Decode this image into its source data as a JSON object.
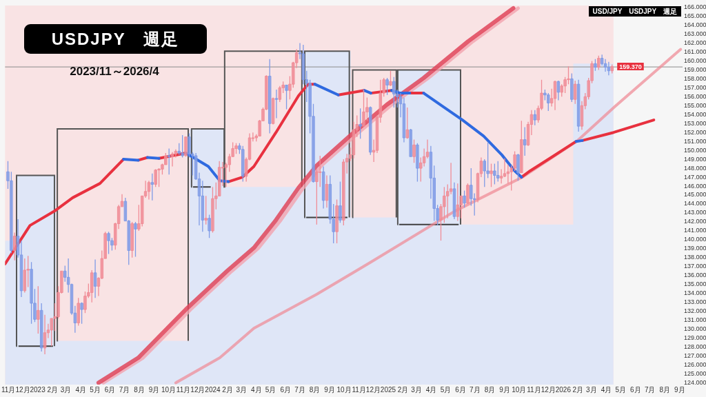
{
  "chart_data": {
    "type": "candlestick",
    "title": "USDJPY　週足",
    "subtitle": "2023/11～2026/4",
    "annotations": [
      "USD/JPY　USDJPY　週足"
    ],
    "x": [
      "2022-10-31",
      "2022-11-07",
      "2022-11-14",
      "2022-11-21",
      "2022-11-28",
      "2022-12-05",
      "2022-12-12",
      "2022-12-19",
      "2022-12-26",
      "2023-01-02",
      "2023-01-09",
      "2023-01-16",
      "2023-01-23",
      "2023-01-30",
      "2023-02-06",
      "2023-02-13",
      "2023-02-20",
      "2023-02-27",
      "2023-03-06",
      "2023-03-13",
      "2023-03-20",
      "2023-03-27",
      "2023-04-03",
      "2023-04-10",
      "2023-04-17",
      "2023-04-24",
      "2023-05-01",
      "2023-05-08",
      "2023-05-15",
      "2023-05-22",
      "2023-05-29",
      "2023-06-05",
      "2023-06-12",
      "2023-06-19",
      "2023-06-26",
      "2023-07-03",
      "2023-07-10",
      "2023-07-17",
      "2023-07-24",
      "2023-07-31",
      "2023-08-07",
      "2023-08-14",
      "2023-08-21",
      "2023-08-28",
      "2023-09-04",
      "2023-09-11",
      "2023-09-18",
      "2023-09-25",
      "2023-10-02",
      "2023-10-09",
      "2023-10-16",
      "2023-10-23",
      "2023-10-30",
      "2023-11-06",
      "2023-11-13",
      "2023-11-20",
      "2023-11-27",
      "2023-12-04",
      "2023-12-11",
      "2023-12-18",
      "2023-12-25",
      "2024-01-01",
      "2024-01-08",
      "2024-01-15",
      "2024-01-22",
      "2024-01-29",
      "2024-02-05",
      "2024-02-12",
      "2024-02-19",
      "2024-02-26",
      "2024-03-04",
      "2024-03-11",
      "2024-03-18",
      "2024-03-25",
      "2024-04-01",
      "2024-04-08",
      "2024-04-15",
      "2024-04-22",
      "2024-04-29",
      "2024-05-06",
      "2024-05-13",
      "2024-05-20",
      "2024-05-27",
      "2024-06-03",
      "2024-06-10",
      "2024-06-17",
      "2024-06-24",
      "2024-07-01",
      "2024-07-08",
      "2024-07-15",
      "2024-07-22",
      "2024-07-29",
      "2024-08-05",
      "2024-08-12",
      "2024-08-19",
      "2024-08-26",
      "2024-09-02",
      "2024-09-09",
      "2024-09-16",
      "2024-09-23",
      "2024-09-30",
      "2024-10-07",
      "2024-10-14",
      "2024-10-21",
      "2024-10-28",
      "2024-11-04",
      "2024-11-11",
      "2024-11-18",
      "2024-11-25",
      "2024-12-02",
      "2024-12-09",
      "2024-12-16",
      "2024-12-23",
      "2024-12-30",
      "2025-01-06",
      "2025-01-13",
      "2025-01-20",
      "2025-01-27",
      "2025-02-03",
      "2025-02-10",
      "2025-02-17",
      "2025-02-24",
      "2025-03-03",
      "2025-03-10",
      "2025-03-17",
      "2025-03-24",
      "2025-03-31",
      "2025-04-07",
      "2025-04-14",
      "2025-04-21",
      "2025-04-28",
      "2025-05-05",
      "2025-05-12",
      "2025-05-19",
      "2025-05-26",
      "2025-06-02",
      "2025-06-09",
      "2025-06-16",
      "2025-06-23",
      "2025-06-30",
      "2025-07-07",
      "2025-07-14",
      "2025-07-21",
      "2025-07-28",
      "2025-08-04",
      "2025-08-11",
      "2025-08-18",
      "2025-08-25",
      "2025-09-01",
      "2025-09-08",
      "2025-09-15",
      "2025-09-22",
      "2025-09-29",
      "2025-10-06",
      "2025-10-13",
      "2025-10-20",
      "2025-10-27",
      "2025-11-03",
      "2025-11-10",
      "2025-11-17",
      "2025-11-24",
      "2025-12-01",
      "2025-12-08",
      "2025-12-15",
      "2025-12-22",
      "2025-12-29",
      "2026-01-05",
      "2026-01-12",
      "2026-01-19",
      "2026-01-26",
      "2026-02-02",
      "2026-02-09",
      "2026-02-16",
      "2026-02-23",
      "2026-03-02",
      "2026-03-09",
      "2026-03-16",
      "2026-03-23",
      "2026-03-30",
      "2026-04-06",
      "2026-04-13"
    ],
    "ohlc": [
      [
        147.6,
        148.8,
        145.7,
        146.6
      ],
      [
        146.6,
        147.6,
        138.5,
        138.8
      ],
      [
        138.8,
        140.8,
        137.7,
        140.4
      ],
      [
        140.4,
        142.3,
        138.0,
        138.3
      ],
      [
        138.3,
        139.9,
        133.6,
        134.3
      ],
      [
        134.3,
        137.9,
        134.1,
        136.6
      ],
      [
        136.6,
        138.2,
        134.7,
        136.7
      ],
      [
        136.7,
        137.5,
        130.6,
        132.9
      ],
      [
        132.9,
        134.5,
        130.8,
        131.1
      ],
      [
        131.1,
        134.8,
        129.5,
        132.1
      ],
      [
        132.1,
        132.9,
        127.5,
        127.9
      ],
      [
        127.9,
        131.6,
        127.2,
        129.6
      ],
      [
        129.6,
        130.6,
        129.0,
        129.9
      ],
      [
        129.9,
        131.2,
        128.1,
        131.2
      ],
      [
        131.2,
        132.9,
        129.8,
        131.4
      ],
      [
        131.4,
        134.8,
        131.2,
        134.1
      ],
      [
        134.1,
        136.5,
        134.0,
        136.5
      ],
      [
        136.5,
        137.1,
        135.3,
        135.8
      ],
      [
        135.8,
        137.9,
        134.1,
        135.0
      ],
      [
        135.0,
        135.1,
        131.6,
        131.8
      ],
      [
        131.8,
        132.6,
        129.6,
        130.7
      ],
      [
        130.7,
        133.5,
        130.4,
        132.9
      ],
      [
        132.9,
        133.0,
        130.6,
        132.2
      ],
      [
        132.2,
        134.2,
        131.8,
        133.7
      ],
      [
        133.7,
        135.1,
        133.5,
        134.1
      ],
      [
        134.1,
        136.6,
        133.0,
        136.3
      ],
      [
        136.3,
        137.8,
        133.5,
        134.8
      ],
      [
        134.8,
        135.8,
        133.7,
        135.7
      ],
      [
        135.7,
        138.8,
        135.6,
        137.9
      ],
      [
        137.9,
        140.9,
        137.9,
        140.7
      ],
      [
        140.7,
        140.9,
        138.4,
        139.9
      ],
      [
        139.9,
        140.2,
        138.8,
        139.4
      ],
      [
        139.4,
        141.9,
        138.9,
        141.8
      ],
      [
        141.8,
        143.9,
        141.2,
        143.7
      ],
      [
        143.7,
        145.1,
        143.7,
        144.3
      ],
      [
        144.3,
        144.7,
        142.1,
        142.1
      ],
      [
        142.1,
        142.2,
        137.2,
        138.8
      ],
      [
        138.8,
        142.0,
        138.0,
        141.8
      ],
      [
        141.8,
        142.0,
        138.1,
        141.2
      ],
      [
        141.2,
        143.9,
        141.0,
        141.8
      ],
      [
        141.8,
        144.9,
        141.5,
        144.9
      ],
      [
        144.9,
        146.6,
        144.7,
        145.4
      ],
      [
        145.4,
        146.6,
        144.5,
        146.4
      ],
      [
        146.4,
        147.4,
        144.4,
        146.2
      ],
      [
        146.2,
        147.9,
        145.9,
        147.8
      ],
      [
        147.8,
        148.0,
        145.9,
        147.9
      ],
      [
        147.9,
        148.5,
        147.3,
        148.4
      ],
      [
        148.4,
        149.7,
        148.4,
        149.4
      ],
      [
        149.4,
        150.2,
        147.3,
        149.3
      ],
      [
        149.3,
        149.8,
        148.2,
        149.6
      ],
      [
        149.6,
        150.1,
        149.2,
        149.9
      ],
      [
        149.9,
        150.8,
        149.5,
        149.7
      ],
      [
        149.7,
        151.7,
        149.2,
        149.4
      ],
      [
        149.4,
        151.5,
        149.3,
        151.5
      ],
      [
        151.5,
        151.9,
        149.2,
        149.6
      ],
      [
        149.6,
        149.8,
        147.2,
        149.4
      ],
      [
        149.4,
        149.7,
        146.7,
        146.8
      ],
      [
        146.8,
        147.5,
        141.6,
        144.9
      ],
      [
        144.9,
        146.6,
        140.9,
        142.2
      ],
      [
        142.2,
        144.9,
        141.7,
        142.4
      ],
      [
        142.4,
        142.8,
        140.2,
        141.0
      ],
      [
        141.0,
        145.9,
        140.8,
        144.6
      ],
      [
        144.6,
        146.4,
        143.4,
        144.9
      ],
      [
        144.9,
        148.8,
        144.9,
        148.1
      ],
      [
        148.1,
        148.7,
        146.0,
        148.1
      ],
      [
        148.1,
        148.6,
        145.9,
        148.4
      ],
      [
        148.4,
        149.6,
        147.6,
        149.3
      ],
      [
        149.3,
        150.9,
        149.3,
        150.2
      ],
      [
        150.2,
        150.8,
        149.6,
        150.5
      ],
      [
        150.5,
        150.8,
        149.6,
        150.1
      ],
      [
        150.1,
        150.5,
        146.5,
        147.1
      ],
      [
        147.1,
        149.2,
        146.5,
        149.0
      ],
      [
        149.0,
        151.9,
        148.9,
        151.4
      ],
      [
        151.4,
        152.0,
        151.0,
        151.4
      ],
      [
        151.4,
        151.8,
        151.0,
        151.6
      ],
      [
        151.6,
        153.4,
        151.6,
        153.3
      ],
      [
        153.3,
        154.8,
        153.3,
        154.6
      ],
      [
        154.6,
        158.4,
        154.5,
        158.3
      ],
      [
        158.3,
        160.2,
        151.9,
        153.0
      ],
      [
        153.0,
        155.9,
        152.9,
        155.8
      ],
      [
        155.8,
        156.8,
        153.6,
        155.7
      ],
      [
        155.7,
        157.2,
        155.4,
        157.0
      ],
      [
        157.0,
        157.7,
        156.4,
        157.3
      ],
      [
        157.3,
        157.3,
        154.6,
        156.7
      ],
      [
        156.7,
        158.3,
        155.7,
        157.4
      ],
      [
        157.4,
        159.9,
        157.0,
        159.8
      ],
      [
        159.8,
        161.3,
        159.2,
        160.9
      ],
      [
        160.9,
        162.0,
        160.2,
        160.8
      ],
      [
        160.8,
        161.8,
        157.4,
        157.9
      ],
      [
        157.9,
        158.9,
        155.4,
        157.5
      ],
      [
        157.5,
        157.9,
        151.9,
        153.8
      ],
      [
        153.8,
        155.2,
        146.4,
        146.5
      ],
      [
        146.5,
        147.9,
        141.7,
        147.6
      ],
      [
        147.6,
        149.4,
        145.9,
        147.6
      ],
      [
        147.6,
        148.2,
        143.5,
        144.4
      ],
      [
        144.4,
        147.2,
        143.6,
        146.2
      ],
      [
        146.2,
        147.2,
        141.8,
        142.3
      ],
      [
        142.3,
        144.0,
        139.6,
        140.9
      ],
      [
        140.9,
        144.5,
        139.6,
        143.8
      ],
      [
        143.8,
        146.5,
        141.9,
        142.2
      ],
      [
        142.2,
        149.0,
        141.6,
        148.7
      ],
      [
        148.7,
        149.6,
        147.4,
        149.1
      ],
      [
        149.1,
        150.3,
        148.8,
        149.5
      ],
      [
        149.5,
        153.2,
        149.1,
        152.3
      ],
      [
        152.3,
        153.9,
        151.5,
        152.9
      ],
      [
        152.9,
        154.7,
        151.3,
        152.7
      ],
      [
        152.7,
        156.8,
        152.7,
        154.3
      ],
      [
        154.3,
        155.9,
        153.3,
        154.8
      ],
      [
        154.8,
        154.9,
        149.5,
        149.8
      ],
      [
        149.8,
        151.2,
        148.7,
        150.0
      ],
      [
        150.0,
        153.9,
        149.7,
        153.7
      ],
      [
        153.7,
        157.9,
        153.1,
        156.4
      ],
      [
        156.4,
        158.1,
        156.0,
        157.9
      ],
      [
        157.9,
        158.1,
        156.2,
        157.3
      ],
      [
        157.3,
        158.9,
        157.2,
        157.7
      ],
      [
        157.7,
        158.2,
        154.8,
        156.3
      ],
      [
        156.3,
        156.8,
        154.8,
        156.0
      ],
      [
        156.0,
        156.4,
        153.7,
        155.2
      ],
      [
        155.2,
        155.9,
        150.9,
        151.4
      ],
      [
        151.4,
        154.8,
        151.3,
        152.3
      ],
      [
        152.3,
        152.4,
        149.3,
        149.3
      ],
      [
        149.3,
        151.2,
        148.6,
        150.6
      ],
      [
        150.6,
        150.8,
        146.5,
        148.0
      ],
      [
        148.0,
        149.2,
        146.5,
        148.6
      ],
      [
        148.6,
        150.2,
        148.2,
        149.3
      ],
      [
        149.3,
        151.2,
        149.1,
        149.8
      ],
      [
        149.8,
        150.5,
        144.6,
        146.9
      ],
      [
        146.9,
        148.3,
        142.1,
        143.5
      ],
      [
        143.5,
        143.9,
        141.6,
        142.2
      ],
      [
        142.2,
        144.0,
        139.9,
        143.7
      ],
      [
        143.7,
        145.9,
        141.9,
        144.9
      ],
      [
        144.9,
        146.2,
        142.4,
        145.4
      ],
      [
        145.4,
        148.6,
        145.1,
        145.7
      ],
      [
        145.7,
        146.4,
        142.3,
        142.6
      ],
      [
        142.6,
        146.3,
        142.1,
        143.9
      ],
      [
        143.9,
        144.9,
        142.4,
        144.9
      ],
      [
        144.9,
        145.5,
        143.6,
        144.1
      ],
      [
        144.1,
        146.3,
        144.0,
        146.1
      ],
      [
        146.1,
        148.0,
        143.8,
        144.6
      ],
      [
        144.6,
        145.2,
        142.7,
        144.5
      ],
      [
        144.5,
        147.5,
        144.2,
        147.4
      ],
      [
        147.4,
        149.2,
        147.0,
        148.8
      ],
      [
        148.8,
        149.0,
        145.9,
        147.7
      ],
      [
        147.7,
        150.9,
        146.9,
        147.4
      ],
      [
        147.4,
        148.5,
        145.9,
        147.7
      ],
      [
        147.7,
        148.5,
        146.2,
        147.2
      ],
      [
        147.2,
        148.8,
        146.5,
        146.9
      ],
      [
        146.9,
        147.9,
        146.3,
        147.1
      ],
      [
        147.1,
        149.1,
        147.0,
        147.4
      ],
      [
        147.4,
        148.4,
        146.3,
        147.6
      ],
      [
        147.6,
        148.3,
        145.5,
        148.0
      ],
      [
        148.0,
        149.9,
        147.7,
        149.5
      ],
      [
        149.5,
        149.6,
        146.6,
        147.5
      ],
      [
        147.5,
        153.3,
        147.5,
        151.2
      ],
      [
        151.2,
        152.6,
        149.4,
        150.6
      ],
      [
        150.6,
        153.2,
        150.5,
        152.9
      ],
      [
        152.9,
        154.5,
        151.7,
        154.0
      ],
      [
        154.0,
        154.5,
        152.8,
        153.4
      ],
      [
        153.4,
        155.0,
        153.1,
        154.7
      ],
      [
        154.7,
        157.9,
        154.5,
        156.4
      ],
      [
        156.4,
        156.8,
        155.6,
        156.2
      ],
      [
        156.2,
        156.4,
        154.4,
        155.3
      ],
      [
        155.3,
        156.9,
        154.9,
        155.8
      ],
      [
        155.8,
        157.8,
        154.5,
        157.7
      ],
      [
        157.7,
        157.8,
        155.6,
        156.5
      ],
      [
        156.5,
        157.4,
        156.0,
        157.2
      ],
      [
        157.2,
        158.2,
        156.4,
        157.9
      ],
      [
        157.9,
        159.4,
        157.4,
        158.0
      ],
      [
        158.0,
        158.6,
        155.4,
        155.7
      ],
      [
        155.7,
        157.8,
        155.2,
        157.4
      ],
      [
        157.4,
        157.9,
        152.1,
        152.7
      ],
      [
        152.7,
        155.5,
        152.3,
        155.0
      ],
      [
        155.0,
        156.4,
        154.6,
        156.0
      ],
      [
        156.0,
        158.1,
        155.7,
        157.8
      ],
      [
        157.8,
        160.0,
        157.5,
        159.7
      ],
      [
        159.7,
        160.2,
        158.9,
        159.3
      ],
      [
        159.3,
        160.6,
        159.0,
        160.3
      ],
      [
        160.3,
        160.7,
        159.5,
        159.7
      ],
      [
        159.7,
        160.2,
        158.8,
        159.3
      ],
      [
        159.3,
        159.9,
        158.4,
        158.9
      ],
      [
        158.9,
        159.6,
        158.6,
        159.37
      ]
    ],
    "colors": [
      "#7f9be6",
      "#7f9be6",
      "#f08c96",
      "#7f9be6",
      "#7f9be6",
      "#f08c96",
      "#f08c96",
      "#7f9be6",
      "#7f9be6",
      "#f08c96",
      "#7f9be6",
      "#f08c96",
      "#f08c96",
      "#f08c96",
      "#f08c96",
      "#f08c96",
      "#f08c96",
      "#7f9be6",
      "#7f9be6",
      "#7f9be6",
      "#7f9be6",
      "#f08c96",
      "#7f9be6",
      "#f08c96",
      "#f08c96",
      "#f08c96",
      "#7f9be6",
      "#f08c96",
      "#f08c96",
      "#f08c96",
      "#7f9be6",
      "#7f9be6",
      "#f08c96",
      "#f08c96",
      "#f08c96",
      "#7f9be6",
      "#7f9be6",
      "#f08c96",
      "#7f9be6",
      "#f08c96",
      "#f08c96",
      "#f08c96",
      "#f08c96",
      "#7f9be6",
      "#f08c96",
      "#f08c96",
      "#f08c96",
      "#f08c96",
      "#7f9be6",
      "#f08c96",
      "#f08c96",
      "#7f9be6",
      "#7f9be6",
      "#f08c96",
      "#7f9be6",
      "#7f9be6",
      "#7f9be6",
      "#7f9be6",
      "#7f9be6",
      "#f08c96",
      "#7f9be6",
      "#f08c96",
      "#f08c96",
      "#f08c96",
      "#f08c96",
      "#f08c96",
      "#f08c96",
      "#f08c96",
      "#f08c96",
      "#7f9be6",
      "#7f9be6",
      "#f08c96",
      "#f08c96",
      "#f08c96",
      "#f08c96",
      "#f08c96",
      "#f08c96",
      "#f08c96",
      "#7f9be6",
      "#f08c96",
      "#7f9be6",
      "#f08c96",
      "#f08c96",
      "#7f9be6",
      "#f08c96",
      "#f08c96",
      "#f08c96",
      "#7f9be6",
      "#7f9be6",
      "#7f9be6",
      "#7f9be6",
      "#7f9be6",
      "#f08c96",
      "#f08c96",
      "#7f9be6",
      "#f08c96",
      "#7f9be6",
      "#7f9be6",
      "#f08c96",
      "#7f9be6",
      "#f08c96",
      "#f08c96",
      "#f08c96",
      "#f08c96",
      "#f08c96",
      "#7f9be6",
      "#f08c96",
      "#f08c96",
      "#7f9be6",
      "#f08c96",
      "#f08c96",
      "#f08c96",
      "#f08c96",
      "#7f9be6",
      "#f08c96",
      "#7f9be6",
      "#7f9be6",
      "#7f9be6",
      "#7f9be6",
      "#f08c96",
      "#7f9be6",
      "#f08c96",
      "#7f9be6",
      "#f08c96",
      "#f08c96",
      "#f08c96",
      "#7f9be6",
      "#7f9be6",
      "#7f9be6",
      "#f08c96",
      "#f08c96",
      "#f08c96",
      "#f08c96",
      "#7f9be6",
      "#f08c96",
      "#f08c96",
      "#7f9be6",
      "#f08c96",
      "#7f9be6",
      "#7f9be6",
      "#f08c96",
      "#f08c96",
      "#7f9be6",
      "#7f9be6",
      "#f08c96",
      "#7f9be6",
      "#7f9be6",
      "#f08c96",
      "#f08c96",
      "#f08c96",
      "#f08c96",
      "#f08c96",
      "#7f9be6",
      "#f08c96",
      "#7f9be6",
      "#f08c96",
      "#f08c96",
      "#7f9be6",
      "#f08c96",
      "#f08c96",
      "#7f9be6",
      "#7f9be6",
      "#f08c96",
      "#f08c96",
      "#7f9be6",
      "#f08c96",
      "#f08c96",
      "#f08c96",
      "#7f9be6",
      "#f08c96",
      "#7f9be6",
      "#f08c96",
      "#f08c96",
      "#f08c96",
      "#f08c96",
      "#7f9be6",
      "#f08c96",
      "#7f9be6",
      "#7f9be6",
      "#7f9be6",
      "#f08c96"
    ],
    "series": [
      {
        "type": "area",
        "color": "#dfe6f7",
        "x": [
          "2022-10-25",
          "2022-11-18",
          "2022-11-18",
          "2023-02-08",
          "2023-02-08",
          "2023-11-14",
          "2023-11-14",
          "2024-01-27",
          "2024-01-27",
          "2024-07-08",
          "2024-07-08",
          "2024-10-15",
          "2024-10-15",
          "2025-01-19",
          "2025-01-19",
          "2025-06-02",
          "2025-06-02",
          "2026-01-22",
          "2026-01-22",
          "2026-04-16"
        ],
        "values": [
          139.9,
          139.9,
          147.2,
          147.2,
          128.7,
          128.7,
          152.4,
          152.4,
          145.9,
          145.9,
          161.1,
          161.1,
          142.5,
          142.5,
          159.0,
          159.0,
          141.7,
          141.7,
          159.7,
          159.7
        ]
      },
      {
        "type": "step",
        "color": "#555555",
        "x": [
          "2022-11-17",
          "2022-11-18",
          "2023-02-05",
          "2023-02-08",
          "2023-02-10",
          "2023-02-11",
          "2023-11-11",
          "2023-11-14",
          "2023-11-17",
          "2023-11-18",
          "2024-01-25",
          "2024-01-26",
          "2024-07-05",
          "2024-07-08",
          "2024-07-10",
          "2024-07-11",
          "2024-10-12",
          "2024-10-15",
          "2024-10-18",
          "2024-10-19",
          "2025-01-18",
          "2025-01-19",
          "2025-01-20",
          "2025-01-21",
          "2025-06-01"
        ],
        "values": [
          128.1,
          147.2,
          128.1,
          null,
          128.7,
          152.4,
          128.7,
          null,
          145.9,
          152.4,
          145.9,
          161.1,
          145.9,
          null,
          142.5,
          161.1,
          142.5,
          null,
          142.5,
          159.0,
          142.5,
          null,
          141.7,
          159.0,
          141.7
        ]
      },
      {
        "type": "step",
        "color": "#3f3f3f",
        "x": [
          "2022-11-22",
          "2023-02-02",
          "2023-06-01",
          "2023-11-21",
          "2023-12-28",
          "2024-04-01",
          "2024-07-14",
          "2024-10-08",
          "2024-12-01",
          "2025-01-24",
          "2025-05-28"
        ],
        "values": [
          128.1,
          128.1,
          null,
          145.9,
          145.9,
          null,
          142.5,
          142.5,
          null,
          141.7,
          141.7
        ]
      },
      {
        "type": "line",
        "color": "#f2a3ae",
        "x": [
          "2023-05-18",
          "2023-08-09",
          "2023-11-16",
          "2024-02-10",
          "2024-04-06",
          "2024-05-22",
          "2024-07-08",
          "2024-08-15",
          "2024-10-25",
          "2025-01-08",
          "2025-03-26",
          "2025-06-27",
          "2025-09-29"
        ],
        "values": [
          124.0,
          126.8,
          132.2,
          136.5,
          139.1,
          142.2,
          145.8,
          148.3,
          151.7,
          155.1,
          158.1,
          162.2,
          165.9
        ]
      },
      {
        "type": "line",
        "color": "#e0455a",
        "x": [
          "2023-05-08",
          "2023-07-30",
          "2023-11-06",
          "2024-01-31",
          "2024-03-27",
          "2024-05-12",
          "2024-06-28",
          "2024-08-05",
          "2024-10-15",
          "2024-12-29",
          "2025-03-16",
          "2025-06-17",
          "2025-09-19"
        ],
        "values": [
          124.0,
          126.8,
          132.2,
          136.5,
          139.1,
          142.2,
          145.8,
          148.3,
          151.7,
          155.1,
          158.1,
          162.2,
          165.9
        ]
      },
      {
        "type": "line",
        "color": "#ef8793",
        "x": [
          "2023-10-16",
          "2024-01-16",
          "2024-03-27",
          "2024-08-05",
          "2024-11-26",
          "2025-05-20",
          "2025-10-08",
          "2026-01-29",
          "2026-04-19",
          "2026-09-03"
        ],
        "values": [
          124.0,
          126.8,
          130.1,
          133.9,
          137.5,
          143.2,
          147.0,
          151.0,
          154.9,
          161.3
        ]
      },
      {
        "type": "line",
        "color": "#e8313f",
        "x": [
          "2022-10-25",
          "2022-12-16",
          "2023-02-05",
          "2023-03-15",
          "2023-05-11",
          "2023-06-29",
          "2023-07-14",
          "2023-07-30",
          "2023-08-18",
          "2023-08-30",
          "2023-09-11",
          "2023-11-06",
          "2023-12-20",
          "2024-02-03",
          "2024-03-03",
          "2024-03-27",
          "2024-05-12",
          "2024-06-28",
          "2024-07-18",
          "2024-08-01",
          "2024-08-25",
          "2024-09-19",
          "2024-11-12",
          "2024-11-19",
          "2024-11-26",
          "2025-01-08",
          "2025-01-26",
          "2025-02-15",
          "2025-03-16",
          "2025-06-25",
          "2025-10-06",
          "2025-10-24",
          "2025-12-07",
          "2026-01-28",
          "2026-02-03",
          "2026-02-10",
          "2026-04-16",
          "2026-07-09"
        ],
        "values": [
          137.3,
          141.6,
          143.2,
          144.7,
          146.3,
          149.0,
          null,
          148.9,
          149.2,
          null,
          149.1,
          149.7,
          null,
          146.5,
          147.0,
          148.2,
          152.0,
          156.1,
          157.4,
          157.4,
          null,
          156.2,
          156.7,
          null,
          156.4,
          156.7,
          null,
          156.4,
          156.4,
          null,
          147.0,
          147.7,
          149.2,
          151.0,
          null,
          151.1,
          152.0,
          153.4
        ]
      },
      {
        "type": "line",
        "color": "#2f6ae0",
        "x": [
          "2023-06-29",
          "2023-07-30",
          "2023-08-08",
          "2023-08-18",
          "2023-09-11",
          "2023-10-09",
          "2023-11-06",
          "2023-12-23",
          "2024-01-16",
          "2024-02-03",
          "2024-05-01",
          "2024-08-01",
          "2024-09-19",
          "2024-10-16",
          "2024-11-12",
          "2024-11-26",
          "2024-12-17",
          "2025-01-08",
          "2025-01-26",
          "2025-02-15",
          "2025-03-01",
          "2025-03-16",
          "2025-04-28",
          "2025-06-05",
          "2025-07-19",
          "2025-08-26",
          "2025-09-22",
          "2025-10-06",
          "2025-12-01",
          "2026-01-28",
          "2026-02-10"
        ],
        "values": [
          149.0,
          148.9,
          null,
          149.2,
          149.1,
          null,
          149.7,
          148.2,
          146.6,
          146.5,
          null,
          157.4,
          156.2,
          null,
          156.7,
          156.4,
          null,
          156.7,
          156.4,
          156.4,
          null,
          156.4,
          154.8,
          153.4,
          151.6,
          149.5,
          147.7,
          147.0,
          null,
          151.0,
          151.1
        ]
      }
    ],
    "bands": [
      {
        "axis": "x",
        "from": "2022-10-25",
        "to": "2026-04-16",
        "color": "#f9e3e4"
      }
    ],
    "ref_lines": [
      {
        "axis": "y",
        "value": 159.37,
        "label": "159.370"
      }
    ],
    "xlim": [
      "2022-10-25",
      "2026-09-07"
    ],
    "xticks": [
      {
        "value": "2022-11-01",
        "label": "11月"
      },
      {
        "value": "2022-12-01",
        "label": "12月"
      },
      {
        "value": "2023-01-01",
        "label": "2023"
      },
      {
        "value": "2023-02-01",
        "label": "2月"
      },
      {
        "value": "2023-03-01",
        "label": "3月"
      },
      {
        "value": "2023-04-01",
        "label": "4月"
      },
      {
        "value": "2023-05-01",
        "label": "5月"
      },
      {
        "value": "2023-06-01",
        "label": "6月"
      },
      {
        "value": "2023-07-01",
        "label": "7月"
      },
      {
        "value": "2023-08-01",
        "label": "8月"
      },
      {
        "value": "2023-09-01",
        "label": "9月"
      },
      {
        "value": "2023-10-01",
        "label": "10月"
      },
      {
        "value": "2023-11-01",
        "label": "11月"
      },
      {
        "value": "2023-12-01",
        "label": "12月"
      },
      {
        "value": "2024-01-01",
        "label": "2024"
      },
      {
        "value": "2024-02-01",
        "label": "2月"
      },
      {
        "value": "2024-03-01",
        "label": "3月"
      },
      {
        "value": "2024-04-01",
        "label": "4月"
      },
      {
        "value": "2024-05-01",
        "label": "5月"
      },
      {
        "value": "2024-06-01",
        "label": "6月"
      },
      {
        "value": "2024-07-01",
        "label": "7月"
      },
      {
        "value": "2024-08-01",
        "label": "8月"
      },
      {
        "value": "2024-09-01",
        "label": "9月"
      },
      {
        "value": "2024-10-01",
        "label": "10月"
      },
      {
        "value": "2024-11-01",
        "label": "11月"
      },
      {
        "value": "2024-12-01",
        "label": "12月"
      },
      {
        "value": "2025-01-01",
        "label": "2025"
      },
      {
        "value": "2025-02-01",
        "label": "2月"
      },
      {
        "value": "2025-03-01",
        "label": "3月"
      },
      {
        "value": "2025-04-01",
        "label": "4月"
      },
      {
        "value": "2025-05-01",
        "label": "5月"
      },
      {
        "value": "2025-06-01",
        "label": "6月"
      },
      {
        "value": "2025-07-01",
        "label": "7月"
      },
      {
        "value": "2025-08-01",
        "label": "8月"
      },
      {
        "value": "2025-09-01",
        "label": "9月"
      },
      {
        "value": "2025-10-01",
        "label": "10月"
      },
      {
        "value": "2025-11-01",
        "label": "11月"
      },
      {
        "value": "2025-12-01",
        "label": "12月"
      },
      {
        "value": "2026-01-01",
        "label": "2026"
      },
      {
        "value": "2026-02-01",
        "label": "2月"
      },
      {
        "value": "2026-03-01",
        "label": "3月"
      },
      {
        "value": "2026-04-01",
        "label": "4月"
      },
      {
        "value": "2026-05-01",
        "label": "5月"
      },
      {
        "value": "2026-06-01",
        "label": "6月"
      },
      {
        "value": "2026-07-01",
        "label": "7月"
      },
      {
        "value": "2026-08-01",
        "label": "8月"
      },
      {
        "value": "2026-09-01",
        "label": "9月"
      }
    ],
    "ylim": [
      123.8,
      166.2
    ],
    "yticks": [
      {
        "value": 124,
        "label": "124.000"
      },
      {
        "value": 125,
        "label": "125.000"
      },
      {
        "value": 126,
        "label": "126.000"
      },
      {
        "value": 127,
        "label": "127.000"
      },
      {
        "value": 128,
        "label": "128.000"
      },
      {
        "value": 129,
        "label": "129.000"
      },
      {
        "value": 130,
        "label": "130.000"
      },
      {
        "value": 131,
        "label": "131.000"
      },
      {
        "value": 132,
        "label": "132.000"
      },
      {
        "value": 133,
        "label": "133.000"
      },
      {
        "value": 134,
        "label": "134.000"
      },
      {
        "value": 135,
        "label": "135.000"
      },
      {
        "value": 136,
        "label": "136.000"
      },
      {
        "value": 137,
        "label": "137.000"
      },
      {
        "value": 138,
        "label": "138.000"
      },
      {
        "value": 139,
        "label": "139.000"
      },
      {
        "value": 140,
        "label": "140.000"
      },
      {
        "value": 141,
        "label": "141.000"
      },
      {
        "value": 142,
        "label": "142.000"
      },
      {
        "value": 143,
        "label": "143.000"
      },
      {
        "value": 144,
        "label": "144.000"
      },
      {
        "value": 145,
        "label": "145.000"
      },
      {
        "value": 146,
        "label": "146.000"
      },
      {
        "value": 147,
        "label": "147.000"
      },
      {
        "value": 148,
        "label": "148.000"
      },
      {
        "value": 149,
        "label": "149.000"
      },
      {
        "value": 150,
        "label": "150.000"
      },
      {
        "value": 151,
        "label": "151.000"
      },
      {
        "value": 152,
        "label": "152.000"
      },
      {
        "value": 153,
        "label": "153.000"
      },
      {
        "value": 154,
        "label": "154.000"
      },
      {
        "value": 155,
        "label": "155.000"
      },
      {
        "value": 156,
        "label": "156.000"
      },
      {
        "value": 157,
        "label": "157.000"
      },
      {
        "value": 158,
        "label": "158.000"
      },
      {
        "value": 159,
        "label": "159.000"
      },
      {
        "value": 160,
        "label": "160.000"
      },
      {
        "value": 161,
        "label": "161.000"
      },
      {
        "value": 162,
        "label": "162.000"
      },
      {
        "value": 163,
        "label": "163.000"
      },
      {
        "value": 164,
        "label": "164.000"
      },
      {
        "value": 165,
        "label": "165.000"
      },
      {
        "value": 166,
        "label": "166.000"
      }
    ]
  }
}
